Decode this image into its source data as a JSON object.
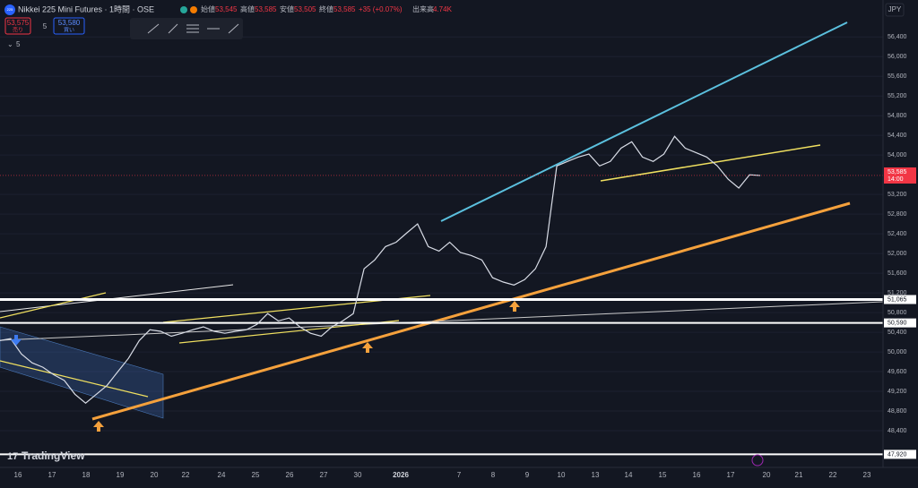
{
  "header": {
    "badge": "225",
    "symbol": "Nikkei 225 Mini Futures · 1時間 · OSE",
    "ohlc": [
      {
        "label": "始値",
        "value": "53,545"
      },
      {
        "label": "高値",
        "value": "53,585"
      },
      {
        "label": "安値",
        "value": "53,505"
      },
      {
        "label": "終値",
        "value": "53,585"
      }
    ],
    "change": "+35 (+0.07%)",
    "volume_label": "出来高",
    "volume": "4.74K"
  },
  "order": {
    "sell_price": "53,575",
    "sell_label": "売り",
    "spread": "5",
    "buy_price": "53,580",
    "buy_label": "買い"
  },
  "indicators_count": "5",
  "currency": "JPY",
  "logo": "TradingView",
  "chart_data": {
    "type": "line",
    "color": "#d8dce6",
    "x_labels": [
      "16",
      "17",
      "18",
      "19",
      "20",
      "22",
      "24",
      "25",
      "26",
      "27",
      "30",
      "2026",
      "7",
      "8",
      "9",
      "10",
      "13",
      "14",
      "15",
      "16",
      "17",
      "20",
      "21",
      "22",
      "23"
    ],
    "values": [
      50230,
      50270,
      49960,
      49780,
      49690,
      49540,
      49420,
      49140,
      48960,
      49140,
      49320,
      49600,
      49870,
      50230,
      50450,
      50420,
      50320,
      50380,
      50450,
      50510,
      50420,
      50380,
      50420,
      50450,
      50560,
      50780,
      50630,
      50690,
      50510,
      50380,
      50320,
      50510,
      50630,
      50780,
      51690,
      51870,
      52140,
      52230,
      52420,
      52600,
      52140,
      52050,
      52230,
      52020,
      51960,
      51870,
      51510,
      51420,
      51360,
      51470,
      51690,
      52140,
      53780,
      53870,
      53960,
      54020,
      53780,
      53870,
      54140,
      54270,
      53960,
      53870,
      54020,
      54380,
      54140,
      54050,
      53960,
      53780,
      53510,
      53330,
      53600,
      53585
    ],
    "ylim": [
      47600,
      57150
    ],
    "yticks": [
      {
        "value": 56400,
        "label": "56,400"
      },
      {
        "value": 56000,
        "label": "56,000"
      },
      {
        "value": 55600,
        "label": "55,600"
      },
      {
        "value": 55200,
        "label": "55,200"
      },
      {
        "value": 54800,
        "label": "54,800"
      },
      {
        "value": 54400,
        "label": "54,400"
      },
      {
        "value": 54000,
        "label": "54,000"
      },
      {
        "value": 53200,
        "label": "53,200"
      },
      {
        "value": 52800,
        "label": "52,800"
      },
      {
        "value": 52400,
        "label": "52,400"
      },
      {
        "value": 52000,
        "label": "52,000"
      },
      {
        "value": 51600,
        "label": "51,600"
      },
      {
        "value": 51200,
        "label": "51,200"
      },
      {
        "value": 50800,
        "label": "50,800"
      },
      {
        "value": 50400,
        "label": "50,400"
      },
      {
        "value": 50000,
        "label": "50,000"
      },
      {
        "value": 49600,
        "label": "49,600"
      },
      {
        "value": 49200,
        "label": "49,200"
      },
      {
        "value": 48800,
        "label": "48,800"
      },
      {
        "value": 48400,
        "label": "48,400"
      }
    ],
    "levels": [
      {
        "value": 51065,
        "label": "51,065"
      },
      {
        "value": 50590,
        "label": "50,590"
      },
      {
        "value": 47920,
        "label": "47,920"
      }
    ],
    "last_price": {
      "value": 53585,
      "label": "53,585"
    },
    "countdown": "14:00",
    "grid": true
  }
}
